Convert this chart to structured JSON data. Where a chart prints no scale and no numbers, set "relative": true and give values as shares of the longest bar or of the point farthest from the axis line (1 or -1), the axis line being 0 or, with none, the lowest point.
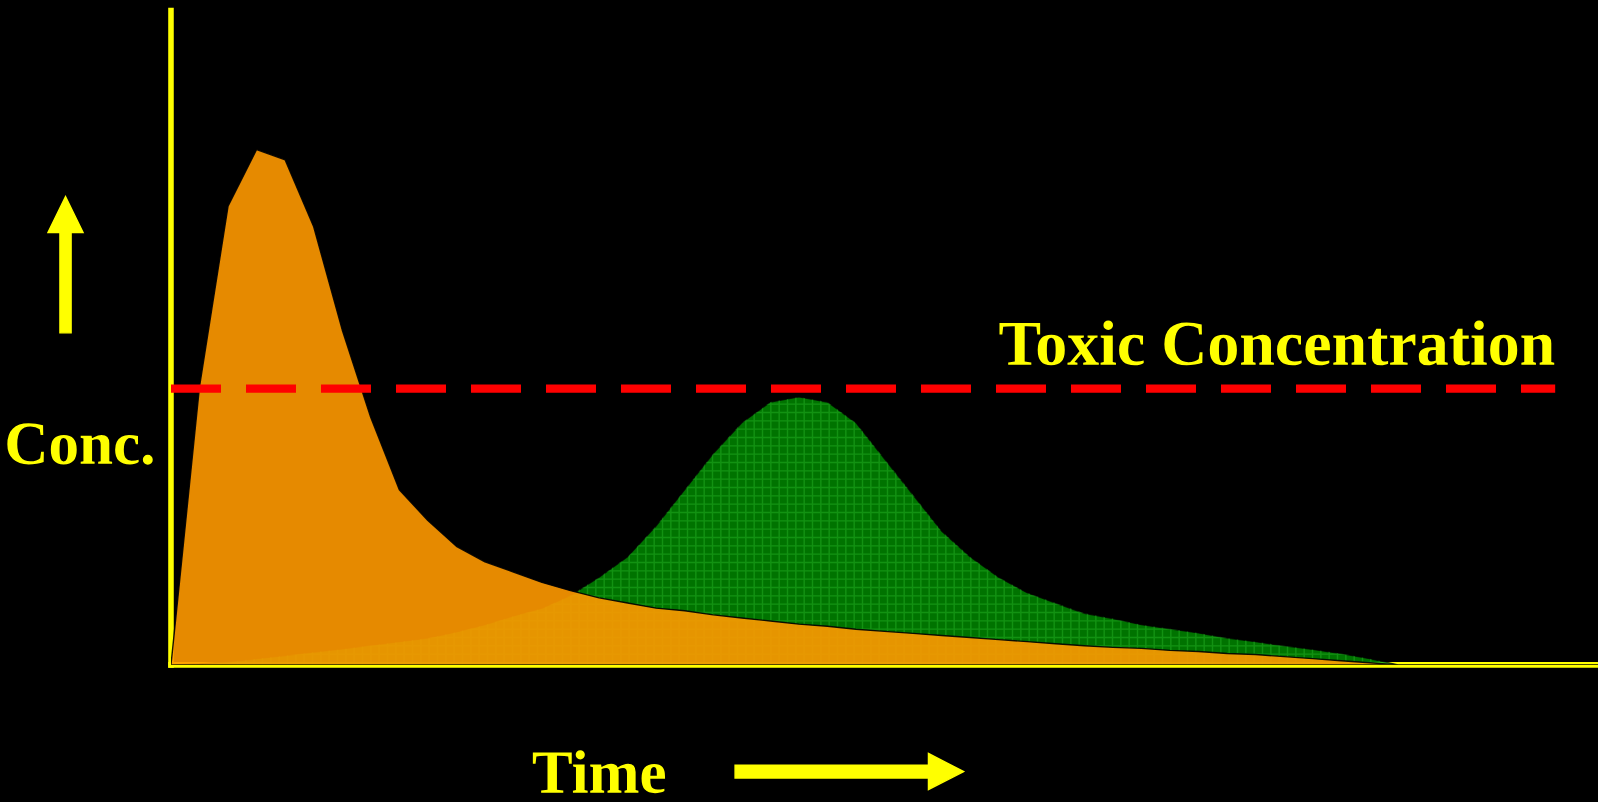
{
  "chart_data": {
    "type": "area",
    "relative": true,
    "xlabel": "Time",
    "ylabel": "Conc.",
    "categories": [
      null,
      null,
      null,
      null,
      null,
      null,
      null,
      null,
      null,
      null,
      null,
      null,
      null,
      null,
      null,
      null,
      null,
      null,
      null,
      null,
      null,
      null,
      null,
      null,
      null,
      null,
      null,
      null,
      null,
      null,
      null,
      null,
      null,
      null,
      null,
      null,
      null,
      null,
      null,
      null,
      null,
      null,
      null,
      null,
      null,
      null,
      null,
      null,
      null,
      null,
      null
    ],
    "series": [
      {
        "color": "#ff9900",
        "values": [
          0,
          0.54,
          0.89,
          1,
          0.98,
          0.85,
          0.65,
          0.48,
          0.34,
          0.28,
          0.23,
          0.2,
          0.18,
          0.16,
          0.144,
          0.13,
          0.12,
          0.11,
          0.105,
          0.097,
          0.091,
          0.085,
          0.079,
          0.075,
          0.069,
          0.065,
          0.061,
          0.057,
          0.053,
          0.049,
          0.045,
          0.041,
          0.037,
          0.034,
          0.032,
          0.028,
          0.026,
          0.022,
          0.02,
          0.016,
          0.012,
          0.008,
          0.004,
          0,
          0,
          0,
          0,
          0,
          0,
          0,
          0
        ]
      },
      {
        "color": "#009900",
        "values": [
          0,
          0.002,
          0.006,
          0.012,
          0.018,
          0.025,
          0.031,
          0.038,
          0.045,
          0.052,
          0.064,
          0.078,
          0.095,
          0.11,
          0.135,
          0.17,
          0.21,
          0.27,
          0.34,
          0.41,
          0.47,
          0.51,
          0.52,
          0.51,
          0.47,
          0.4,
          0.33,
          0.26,
          0.21,
          0.17,
          0.14,
          0.12,
          0.1,
          0.09,
          0.078,
          0.07,
          0.062,
          0.052,
          0.045,
          0.037,
          0.03,
          0.022,
          0.012,
          0,
          0,
          0,
          0,
          0,
          0,
          0,
          0
        ]
      }
    ],
    "ref_lines": [
      {
        "axis": "y",
        "value": 0.536,
        "label": "Toxic Concentration",
        "color": "#ff0000",
        "line_style": "dashed"
      }
    ]
  }
}
